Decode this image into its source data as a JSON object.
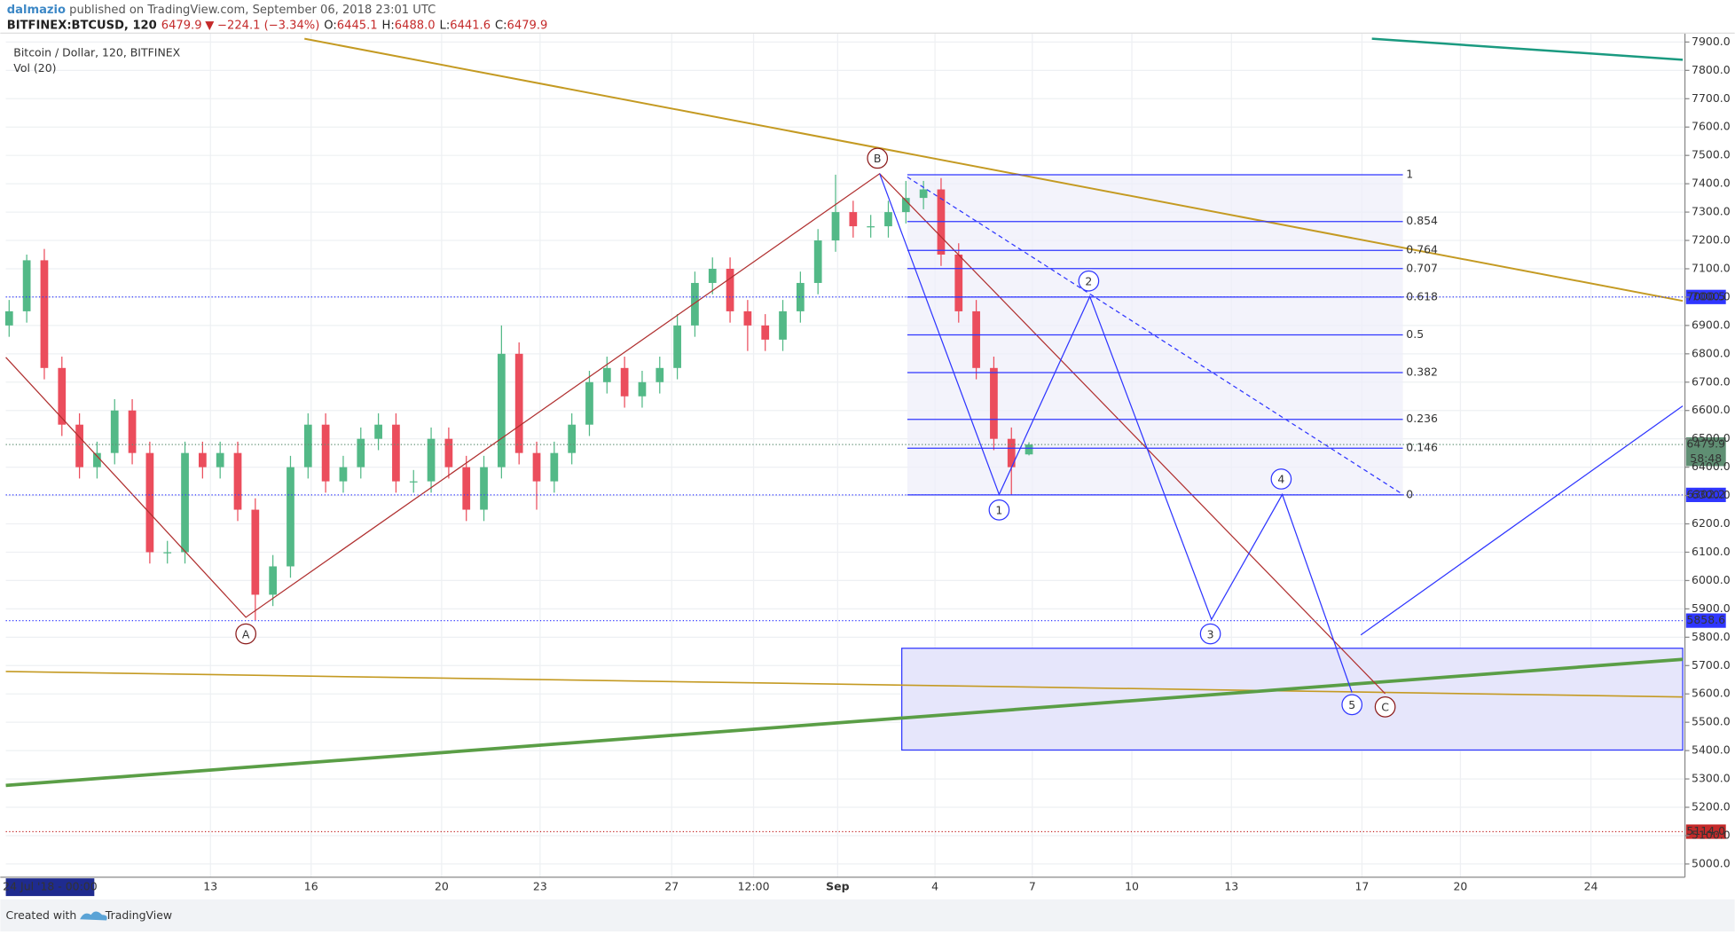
{
  "header": {
    "author": "dalmazio",
    "published": " published on TradingView.com, September 06, 2018 23:01 UTC",
    "symbol": "BITFINEX:BTCUSD, 120",
    "last": "6479.9",
    "arrow": "▼",
    "change": "−224.1 (−3.34%)",
    "ohlc": [
      {
        "label": "O:",
        "value": "6445.1"
      },
      {
        "label": "H:",
        "value": "6488.0"
      },
      {
        "label": "L:",
        "value": "6441.6"
      },
      {
        "label": "C:",
        "value": "6479.9"
      }
    ]
  },
  "legend": {
    "title": "Bitcoin / Dollar, 120, BITFINEX",
    "indicator": "Vol (20)"
  },
  "chart_data": {
    "type": "candlestick",
    "ylim": [
      5000,
      7900
    ],
    "yticks": [
      {
        "value": 5000,
        "label": "5000.0"
      },
      {
        "value": 5100,
        "label": "5100.0"
      },
      {
        "value": 5200,
        "label": "5200.0"
      },
      {
        "value": 5300,
        "label": "5300.0"
      },
      {
        "value": 5400,
        "label": "5400.0"
      },
      {
        "value": 5500,
        "label": "5500.0"
      },
      {
        "value": 5600,
        "label": "5600.0"
      },
      {
        "value": 5700,
        "label": "5700.0"
      },
      {
        "value": 5800,
        "label": "5800.0"
      },
      {
        "value": 5900,
        "label": "5900.0"
      },
      {
        "value": 6000,
        "label": "6000.0"
      },
      {
        "value": 6100,
        "label": "6100.0"
      },
      {
        "value": 6200,
        "label": "6200.0"
      },
      {
        "value": 6300,
        "label": "6300.0"
      },
      {
        "value": 6400,
        "label": "6400.0"
      },
      {
        "value": 6500,
        "label": "6500.0"
      },
      {
        "value": 6600,
        "label": "6600.0"
      },
      {
        "value": 6700,
        "label": "6700.0"
      },
      {
        "value": 6800,
        "label": "6800.0"
      },
      {
        "value": 6900,
        "label": "6900.0"
      },
      {
        "value": 7000,
        "label": "7000.0"
      },
      {
        "value": 7100,
        "label": "7100.0"
      },
      {
        "value": 7200,
        "label": "7200.0"
      },
      {
        "value": 7300,
        "label": "7300.0"
      },
      {
        "value": 7400,
        "label": "7400.0"
      },
      {
        "value": 7500,
        "label": "7500.0"
      },
      {
        "value": 7600,
        "label": "7600.0"
      },
      {
        "value": 7700,
        "label": "7700.0"
      },
      {
        "value": 7800,
        "label": "7800.0"
      },
      {
        "value": 7900,
        "label": "7900.0"
      }
    ],
    "xlabels": [
      "13",
      "16",
      "20",
      "23",
      "27",
      "12:00",
      "Sep",
      "4",
      "7",
      "10",
      "13",
      "17",
      "20",
      "24"
    ],
    "crosshair_label": "24 Jul '18 - 00:00",
    "up_color": "#53b987",
    "down_color": "#eb4d5c",
    "grid": true,
    "open": [
      6900,
      6950,
      7130,
      6750,
      6550,
      6400,
      6450,
      6600,
      6450,
      6100,
      6100,
      6450,
      6400,
      6450,
      6250,
      5950,
      6050,
      6400,
      6550,
      6350,
      6400,
      6500,
      6550,
      6350,
      6350,
      6500,
      6400,
      6250,
      6400,
      6800,
      6450,
      6350,
      6450,
      6550,
      6700,
      6750,
      6650,
      6700,
      6750,
      6900,
      7050,
      7100,
      6950,
      6900,
      6850,
      6950,
      7050,
      7200,
      7300,
      7250,
      7250,
      7300,
      7350,
      7380,
      7150,
      6950,
      6750,
      6500,
      6445.1
    ],
    "high": [
      6990,
      7150,
      7170,
      6790,
      6590,
      6490,
      6640,
      6640,
      6490,
      6140,
      6490,
      6490,
      6490,
      6490,
      6290,
      6090,
      6440,
      6590,
      6590,
      6440,
      6540,
      6590,
      6590,
      6390,
      6540,
      6540,
      6440,
      6440,
      6900,
      6840,
      6490,
      6490,
      6590,
      6740,
      6790,
      6790,
      6740,
      6790,
      6940,
      7090,
      7140,
      7140,
      6990,
      6940,
      6990,
      7090,
      7240,
      7432,
      7340,
      7290,
      7340,
      7410,
      7410,
      7420,
      7190,
      6990,
      6790,
      6540,
      6488.0
    ],
    "low": [
      6860,
      6910,
      6710,
      6510,
      6360,
      6360,
      6410,
      6410,
      6060,
      6060,
      6060,
      6360,
      6360,
      6210,
      5860,
      5910,
      6010,
      6360,
      6310,
      6310,
      6360,
      6460,
      6310,
      6310,
      6310,
      6360,
      6210,
      6210,
      6360,
      6410,
      6250,
      6310,
      6410,
      6510,
      6660,
      6610,
      6610,
      6660,
      6710,
      6860,
      7010,
      6910,
      6810,
      6810,
      6810,
      6910,
      7010,
      7160,
      7210,
      7210,
      7210,
      7260,
      7310,
      7110,
      6910,
      6710,
      6460,
      6302.2,
      6441.6
    ],
    "close": [
      6950,
      7130,
      6750,
      6550,
      6400,
      6450,
      6600,
      6450,
      6100,
      6100,
      6450,
      6400,
      6450,
      6250,
      5950,
      6050,
      6400,
      6550,
      6350,
      6400,
      6500,
      6550,
      6350,
      6350,
      6500,
      6400,
      6250,
      6400,
      6800,
      6450,
      6350,
      6450,
      6550,
      6700,
      6750,
      6650,
      6700,
      6750,
      6900,
      7050,
      7100,
      6950,
      6900,
      6850,
      6950,
      7050,
      7200,
      7300,
      7250,
      7250,
      7300,
      7350,
      7380,
      7150,
      6950,
      6750,
      6500,
      6400,
      6479.9
    ],
    "price_lines": [
      {
        "price": 7000.5,
        "label": "7000.5",
        "color": "#2f36ff"
      },
      {
        "price": 6479.9,
        "label": "6479.9",
        "color": "#5f8f73",
        "countdown": "58:48"
      },
      {
        "price": 6302.2,
        "label": "6302.2",
        "color": "#2f36ff"
      },
      {
        "price": 5858.6,
        "label": "5858.6",
        "color": "#2f36ff"
      },
      {
        "price": 5114,
        "label": "5114.0",
        "color": "#c42a2a"
      }
    ],
    "fib": {
      "levels": [
        1,
        0.854,
        0.764,
        0.707,
        0.618,
        0.5,
        0.382,
        0.236,
        0.146,
        0
      ],
      "low": 6302.2,
      "high": 7431.6,
      "color": "#2f36ff"
    },
    "waves": [
      {
        "label": "A",
        "color": "#8b1a1a"
      },
      {
        "label": "B",
        "color": "#8b1a1a"
      },
      {
        "label": "C",
        "color": "#8b1a1a"
      },
      {
        "label": "1",
        "color": "#2f36ff"
      },
      {
        "label": "2",
        "color": "#2f36ff"
      },
      {
        "label": "3",
        "color": "#2f36ff"
      },
      {
        "label": "4",
        "color": "#2f36ff"
      },
      {
        "label": "5",
        "color": "#2f36ff"
      }
    ]
  },
  "footer": {
    "created": "Created with",
    "brand": "TradingView"
  }
}
